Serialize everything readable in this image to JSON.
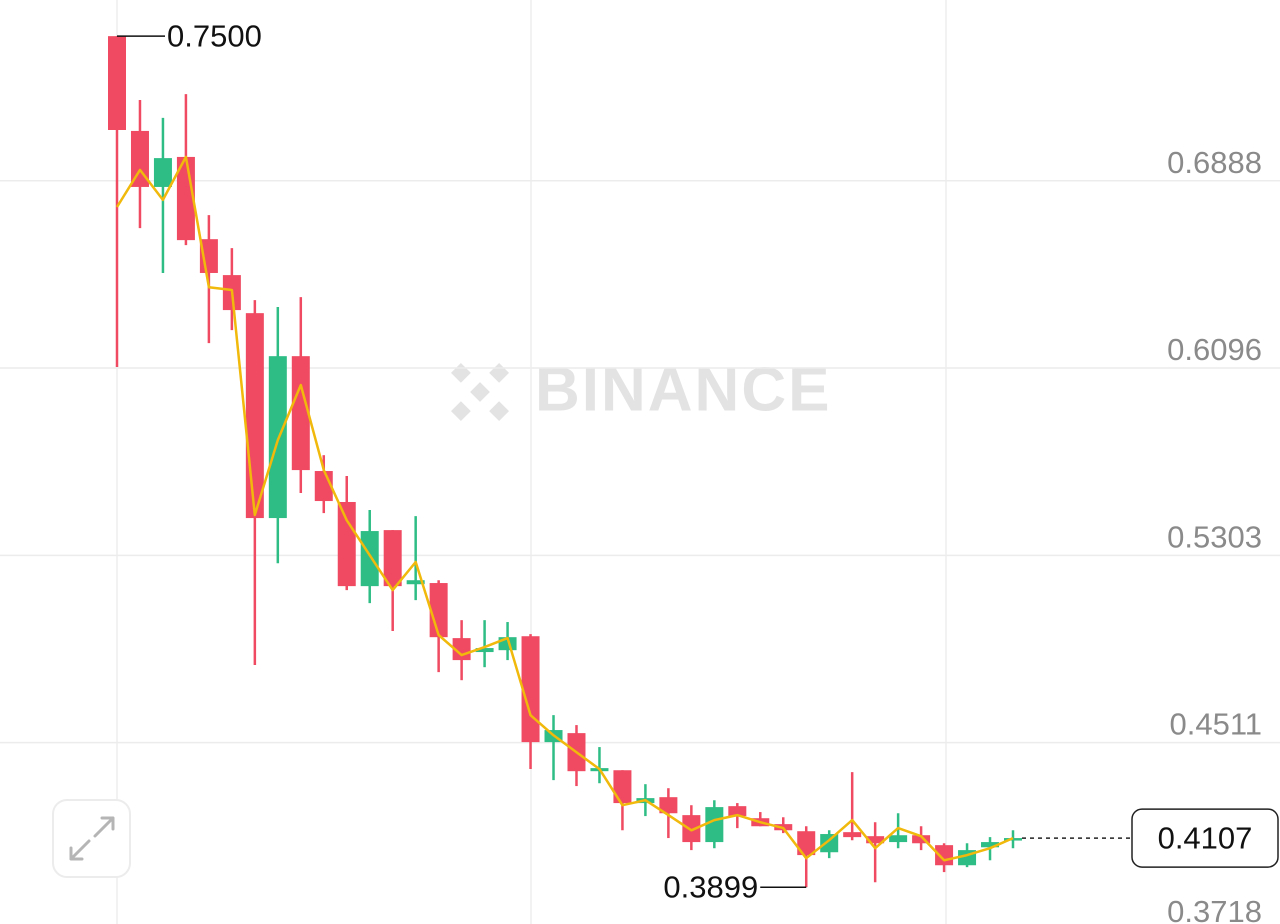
{
  "chart_data": {
    "type": "candlestick",
    "watermark": "BINANCE",
    "up_color": "#2ebd85",
    "down_color": "#ef4a61",
    "open": [
      0.75,
      0.7099,
      0.6862,
      0.6989,
      0.6641,
      0.6489,
      0.6328,
      0.5461,
      0.6146,
      0.566,
      0.5529,
      0.5173,
      0.541,
      0.5181,
      0.5186,
      0.4953,
      0.4894,
      0.4902,
      0.4961,
      0.4513,
      0.4551,
      0.439,
      0.4394,
      0.4255,
      0.428,
      0.4204,
      0.409,
      0.4242,
      0.4191,
      0.4166,
      0.4136,
      0.4047,
      0.4132,
      0.4115,
      0.409,
      0.4119,
      0.4077,
      0.3992,
      0.4068,
      0.41
    ],
    "high": [
      0.75,
      0.723,
      0.7154,
      0.7255,
      0.6743,
      0.6603,
      0.6383,
      0.6354,
      0.6396,
      0.5727,
      0.5639,
      0.5495,
      0.541,
      0.5469,
      0.5198,
      0.5029,
      0.5029,
      0.5021,
      0.497,
      0.4627,
      0.4585,
      0.4492,
      0.4394,
      0.4335,
      0.4318,
      0.4246,
      0.4267,
      0.4255,
      0.4217,
      0.4195,
      0.4157,
      0.414,
      0.4386,
      0.4174,
      0.4212,
      0.4157,
      0.4085,
      0.4085,
      0.4111,
      0.414
    ],
    "low": [
      0.61,
      0.6688,
      0.6498,
      0.6616,
      0.6201,
      0.6256,
      0.4839,
      0.527,
      0.5567,
      0.5482,
      0.5156,
      0.5101,
      0.4983,
      0.5114,
      0.4809,
      0.4775,
      0.483,
      0.486,
      0.4399,
      0.4352,
      0.4327,
      0.4339,
      0.414,
      0.42,
      0.4107,
      0.4056,
      0.4064,
      0.4149,
      0.4157,
      0.4128,
      0.3899,
      0.4022,
      0.4098,
      0.392,
      0.4064,
      0.4056,
      0.3963,
      0.3984,
      0.4013,
      0.4064
    ],
    "close": [
      0.7103,
      0.6862,
      0.6984,
      0.6637,
      0.6498,
      0.6341,
      0.5461,
      0.6146,
      0.5664,
      0.5533,
      0.5173,
      0.5406,
      0.5173,
      0.5198,
      0.4957,
      0.486,
      0.4911,
      0.4957,
      0.4513,
      0.4564,
      0.439,
      0.4403,
      0.4255,
      0.4276,
      0.4212,
      0.409,
      0.4238,
      0.42,
      0.4157,
      0.414,
      0.4035,
      0.4124,
      0.4111,
      0.4085,
      0.4119,
      0.4085,
      0.3992,
      0.4056,
      0.409,
      0.4107
    ],
    "ma_color": "#f0b90b",
    "ma_values": [
      0.6777,
      0.6934,
      0.6807,
      0.6989,
      0.6438,
      0.6426,
      0.5474,
      0.5791,
      0.6024,
      0.5664,
      0.5452,
      0.5304,
      0.5156,
      0.5275,
      0.4966,
      0.4881,
      0.4915,
      0.4953,
      0.4627,
      0.4542,
      0.447,
      0.4399,
      0.4246,
      0.4267,
      0.4204,
      0.414,
      0.4183,
      0.4204,
      0.4174,
      0.4149,
      0.4022,
      0.4098,
      0.4183,
      0.4064,
      0.4149,
      0.4115,
      0.4013,
      0.4035,
      0.4064,
      0.4107
    ],
    "max_label": "0.7500",
    "min_label": "0.3899",
    "last_label": "0.4107",
    "ylim": [
      0.3718,
      0.7653
    ],
    "yticks": [
      0.6888,
      0.6096,
      0.5303,
      0.4511,
      0.3718
    ],
    "grid": true
  }
}
